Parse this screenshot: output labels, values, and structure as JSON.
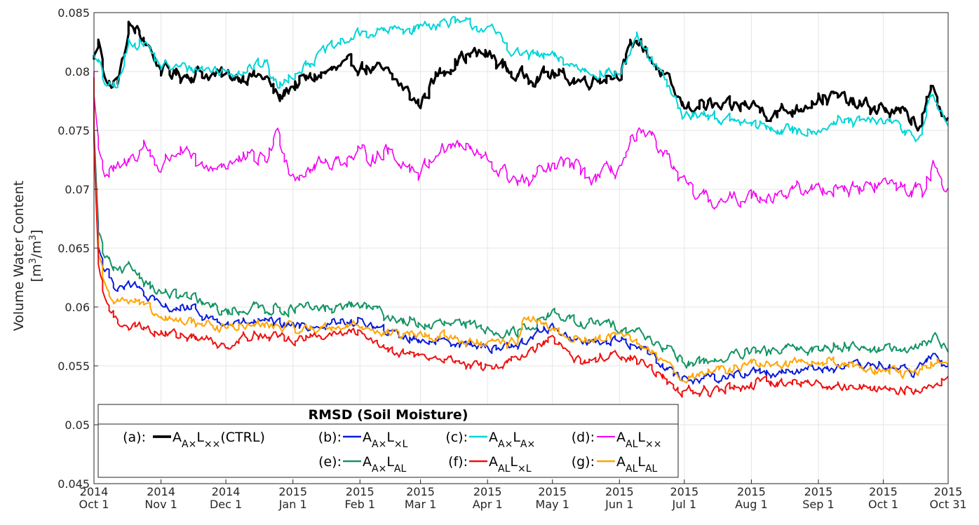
{
  "chart_data": {
    "type": "line",
    "ylabel": "Volume Water Content",
    "ylabel_units": "[m3/m3]",
    "ylim": [
      0.045,
      0.085
    ],
    "yticks": [
      "0.045",
      "0.05",
      "0.055",
      "0.06",
      "0.065",
      "0.07",
      "0.075",
      "0.08",
      "0.085"
    ],
    "xlim": [
      "2014-10-01",
      "2015-10-31"
    ],
    "xticks": [
      {
        "date": "2014-10-01",
        "year": "2014",
        "label": "Oct 1"
      },
      {
        "date": "2014-11-01",
        "year": "2014",
        "label": "Nov 1"
      },
      {
        "date": "2014-12-01",
        "year": "2014",
        "label": "Dec 1"
      },
      {
        "date": "2015-01-01",
        "year": "2015",
        "label": "Jan 1"
      },
      {
        "date": "2015-02-01",
        "year": "2015",
        "label": "Feb 1"
      },
      {
        "date": "2015-03-01",
        "year": "2015",
        "label": "Mar 1"
      },
      {
        "date": "2015-04-01",
        "year": "2015",
        "label": "Apr 1"
      },
      {
        "date": "2015-05-01",
        "year": "2015",
        "label": "May 1"
      },
      {
        "date": "2015-06-01",
        "year": "2015",
        "label": "Jun 1"
      },
      {
        "date": "2015-07-01",
        "year": "2015",
        "label": "Jul 1"
      },
      {
        "date": "2015-08-01",
        "year": "2015",
        "label": "Aug 1"
      },
      {
        "date": "2015-09-01",
        "year": "2015",
        "label": "Sep 1"
      },
      {
        "date": "2015-10-01",
        "year": "2015",
        "label": "Oct 1"
      },
      {
        "date": "2015-10-31",
        "year": "2015",
        "label": "Oct 31"
      }
    ],
    "grid": true,
    "legend": {
      "title": "RMSD (Soil Moisture)",
      "placement": "bottom-left",
      "entries": [
        {
          "tag": "(a):",
          "name": "A_{A×}L_{××}(CTRL)",
          "base1": "A",
          "sub1": "A×",
          "base2": "L",
          "sub2": "××",
          "suffix": "(CTRL)",
          "series": "a"
        },
        {
          "tag": "(b):",
          "name": "A_{A×}L_{×L}",
          "base1": "A",
          "sub1": "A×",
          "base2": "L",
          "sub2": "×L",
          "suffix": "",
          "series": "b"
        },
        {
          "tag": "(c):",
          "name": "A_{A×}L_{A×}",
          "base1": "A",
          "sub1": "A×",
          "base2": "L",
          "sub2": "A×",
          "suffix": "",
          "series": "c"
        },
        {
          "tag": "(d):",
          "name": "A_{AL}L_{××}",
          "base1": "A",
          "sub1": "AL",
          "base2": "L",
          "sub2": "××",
          "suffix": "",
          "series": "d"
        },
        {
          "tag": "(e):",
          "name": "A_{A×}L_{AL}",
          "base1": "A",
          "sub1": "A×",
          "base2": "L",
          "sub2": "AL",
          "suffix": "",
          "series": "e"
        },
        {
          "tag": "(f):",
          "name": "A_{AL}L_{×L}",
          "base1": "A",
          "sub1": "AL",
          "base2": "L",
          "sub2": "×L",
          "suffix": "",
          "series": "f"
        },
        {
          "tag": "(g):",
          "name": "A_{AL}L_{AL}",
          "base1": "A",
          "sub1": "AL",
          "base2": "L",
          "sub2": "AL",
          "suffix": "",
          "series": "g"
        }
      ]
    },
    "series": [
      {
        "id": "a",
        "color": "#000000",
        "width": 3.2,
        "x": [
          "2014-10-01",
          "2014-10-04",
          "2014-10-08",
          "2014-10-13",
          "2014-10-18",
          "2014-10-25",
          "2014-11-01",
          "2014-11-10",
          "2014-11-20",
          "2014-12-01",
          "2014-12-10",
          "2014-12-20",
          "2014-12-26",
          "2015-01-01",
          "2015-01-15",
          "2015-02-01",
          "2015-02-15",
          "2015-03-01",
          "2015-03-10",
          "2015-03-20",
          "2015-04-01",
          "2015-04-15",
          "2015-05-01",
          "2015-05-15",
          "2015-06-01",
          "2015-06-10",
          "2015-06-20",
          "2015-07-01",
          "2015-07-10",
          "2015-07-20",
          "2015-08-01",
          "2015-08-10",
          "2015-08-20",
          "2015-09-01",
          "2015-09-10",
          "2015-09-20",
          "2015-10-01",
          "2015-10-10",
          "2015-10-18",
          "2015-10-24",
          "2015-10-31"
        ],
        "y": [
          0.081,
          0.0825,
          0.0788,
          0.0792,
          0.0838,
          0.0828,
          0.0803,
          0.0797,
          0.0799,
          0.0796,
          0.0797,
          0.0795,
          0.0776,
          0.0788,
          0.0798,
          0.0806,
          0.0797,
          0.0772,
          0.0799,
          0.0812,
          0.0815,
          0.0796,
          0.0798,
          0.0792,
          0.0799,
          0.0828,
          0.0801,
          0.077,
          0.0772,
          0.0768,
          0.0772,
          0.0765,
          0.0767,
          0.0778,
          0.0778,
          0.0771,
          0.0768,
          0.0764,
          0.0755,
          0.0782,
          0.0761
        ]
      },
      {
        "id": "c",
        "color": "#00d5d8",
        "width": 2,
        "x": [
          "2014-10-01",
          "2014-10-04",
          "2014-10-08",
          "2014-10-13",
          "2014-10-18",
          "2014-10-25",
          "2014-11-01",
          "2014-11-10",
          "2014-11-20",
          "2014-12-01",
          "2014-12-10",
          "2014-12-20",
          "2014-12-26",
          "2015-01-01",
          "2015-01-15",
          "2015-02-01",
          "2015-02-15",
          "2015-03-01",
          "2015-03-10",
          "2015-03-20",
          "2015-04-01",
          "2015-04-15",
          "2015-05-01",
          "2015-05-15",
          "2015-06-01",
          "2015-06-10",
          "2015-06-20",
          "2015-07-01",
          "2015-07-10",
          "2015-07-20",
          "2015-08-01",
          "2015-08-10",
          "2015-08-20",
          "2015-09-01",
          "2015-09-10",
          "2015-09-20",
          "2015-10-01",
          "2015-10-10",
          "2015-10-18",
          "2015-10-24",
          "2015-10-31"
        ],
        "y": [
          0.0815,
          0.0805,
          0.0785,
          0.079,
          0.0826,
          0.0825,
          0.0805,
          0.0803,
          0.0803,
          0.08,
          0.0802,
          0.0807,
          0.0785,
          0.0799,
          0.0815,
          0.0832,
          0.0834,
          0.0838,
          0.0842,
          0.084,
          0.0838,
          0.0815,
          0.0812,
          0.0802,
          0.0798,
          0.0826,
          0.08,
          0.0762,
          0.0765,
          0.0759,
          0.0755,
          0.0752,
          0.0749,
          0.0752,
          0.0757,
          0.0756,
          0.0758,
          0.0752,
          0.0744,
          0.0778,
          0.0758
        ]
      },
      {
        "id": "d",
        "color": "#f200f0",
        "width": 1.6,
        "x": [
          "2014-10-01",
          "2014-10-03",
          "2014-10-07",
          "2014-10-15",
          "2014-10-25",
          "2014-11-01",
          "2014-11-10",
          "2014-11-20",
          "2014-12-01",
          "2014-12-10",
          "2014-12-20",
          "2014-12-26",
          "2015-01-01",
          "2015-01-15",
          "2015-02-01",
          "2015-02-15",
          "2015-03-01",
          "2015-03-10",
          "2015-03-20",
          "2015-04-01",
          "2015-04-10",
          "2015-04-20",
          "2015-05-01",
          "2015-05-10",
          "2015-05-20",
          "2015-06-01",
          "2015-06-10",
          "2015-06-20",
          "2015-07-01",
          "2015-07-10",
          "2015-07-20",
          "2015-08-01",
          "2015-08-10",
          "2015-08-20",
          "2015-09-01",
          "2015-09-10",
          "2015-09-20",
          "2015-10-01",
          "2015-10-10",
          "2015-10-20",
          "2015-10-25",
          "2015-10-31"
        ],
        "y": [
          0.08,
          0.0745,
          0.0712,
          0.0718,
          0.0738,
          0.0718,
          0.0735,
          0.0716,
          0.0722,
          0.0724,
          0.0726,
          0.0748,
          0.0712,
          0.0722,
          0.0728,
          0.0732,
          0.0714,
          0.0735,
          0.0738,
          0.0724,
          0.0712,
          0.0705,
          0.0718,
          0.0722,
          0.0708,
          0.0718,
          0.0745,
          0.0738,
          0.0702,
          0.0692,
          0.0688,
          0.0695,
          0.0696,
          0.0698,
          0.07,
          0.0702,
          0.07,
          0.0705,
          0.0702,
          0.0698,
          0.0722,
          0.0703
        ]
      },
      {
        "id": "e",
        "color": "#149464",
        "width": 2,
        "x": [
          "2014-10-01",
          "2014-10-03",
          "2014-10-06",
          "2014-10-12",
          "2014-10-20",
          "2014-11-01",
          "2014-11-15",
          "2014-12-01",
          "2014-12-15",
          "2015-01-01",
          "2015-01-15",
          "2015-02-01",
          "2015-02-15",
          "2015-03-01",
          "2015-03-15",
          "2015-04-01",
          "2015-04-15",
          "2015-05-01",
          "2015-05-15",
          "2015-06-01",
          "2015-06-15",
          "2015-07-01",
          "2015-07-15",
          "2015-08-01",
          "2015-08-15",
          "2015-09-01",
          "2015-09-15",
          "2015-10-01",
          "2015-10-15",
          "2015-10-24",
          "2015-10-31"
        ],
        "y": [
          0.0795,
          0.0672,
          0.0645,
          0.0628,
          0.0632,
          0.0612,
          0.0607,
          0.0595,
          0.06,
          0.0598,
          0.0598,
          0.0602,
          0.0592,
          0.0585,
          0.0585,
          0.0582,
          0.0578,
          0.0595,
          0.0585,
          0.0585,
          0.0575,
          0.0552,
          0.0555,
          0.056,
          0.0563,
          0.0565,
          0.0568,
          0.0565,
          0.0562,
          0.0576,
          0.0565
        ]
      },
      {
        "id": "b",
        "color": "#0a1adc",
        "width": 2,
        "x": [
          "2014-10-01",
          "2014-10-03",
          "2014-10-06",
          "2014-10-12",
          "2014-10-20",
          "2014-11-01",
          "2014-11-15",
          "2014-12-01",
          "2014-12-15",
          "2015-01-01",
          "2015-01-15",
          "2015-02-01",
          "2015-02-15",
          "2015-03-01",
          "2015-03-15",
          "2015-04-01",
          "2015-04-15",
          "2015-05-01",
          "2015-05-15",
          "2015-06-01",
          "2015-06-15",
          "2015-07-01",
          "2015-07-15",
          "2015-08-01",
          "2015-08-15",
          "2015-09-01",
          "2015-09-15",
          "2015-10-01",
          "2015-10-15",
          "2015-10-24",
          "2015-10-31"
        ],
        "y": [
          0.0795,
          0.0662,
          0.0633,
          0.0618,
          0.0618,
          0.06,
          0.0598,
          0.0585,
          0.0587,
          0.0584,
          0.0584,
          0.0588,
          0.0578,
          0.0572,
          0.0572,
          0.0565,
          0.0568,
          0.0583,
          0.057,
          0.0572,
          0.0562,
          0.0538,
          0.054,
          0.0545,
          0.0545,
          0.0548,
          0.0548,
          0.055,
          0.0545,
          0.0558,
          0.055
        ]
      },
      {
        "id": "g",
        "color": "#ffa500",
        "width": 2,
        "x": [
          "2014-10-01",
          "2014-10-03",
          "2014-10-06",
          "2014-10-12",
          "2014-10-20",
          "2014-11-01",
          "2014-11-15",
          "2014-12-01",
          "2014-12-15",
          "2015-01-01",
          "2015-01-15",
          "2015-02-01",
          "2015-02-15",
          "2015-03-01",
          "2015-03-15",
          "2015-04-01",
          "2015-04-15",
          "2015-04-18",
          "2015-05-01",
          "2015-05-15",
          "2015-06-01",
          "2015-06-15",
          "2015-07-01",
          "2015-07-15",
          "2015-08-01",
          "2015-08-15",
          "2015-09-01",
          "2015-09-15",
          "2015-10-01",
          "2015-10-15",
          "2015-10-24",
          "2015-10-31"
        ],
        "y": [
          0.0795,
          0.0655,
          0.0622,
          0.0606,
          0.0606,
          0.059,
          0.0588,
          0.0582,
          0.0585,
          0.0582,
          0.0582,
          0.0585,
          0.0577,
          0.0575,
          0.0575,
          0.0567,
          0.057,
          0.0592,
          0.058,
          0.0572,
          0.0575,
          0.0565,
          0.054,
          0.0545,
          0.0552,
          0.0552,
          0.0555,
          0.0552,
          0.0545,
          0.0542,
          0.0552,
          0.0555
        ]
      },
      {
        "id": "f",
        "color": "#ee1111",
        "width": 2,
        "x": [
          "2014-10-01",
          "2014-10-03",
          "2014-10-06",
          "2014-10-12",
          "2014-10-20",
          "2014-11-01",
          "2014-11-15",
          "2014-12-01",
          "2014-12-15",
          "2015-01-01",
          "2015-01-15",
          "2015-02-01",
          "2015-02-15",
          "2015-03-01",
          "2015-03-15",
          "2015-04-01",
          "2015-04-15",
          "2015-05-01",
          "2015-05-15",
          "2015-06-01",
          "2015-06-15",
          "2015-07-01",
          "2015-07-15",
          "2015-08-01",
          "2015-08-15",
          "2015-09-01",
          "2015-09-15",
          "2015-10-01",
          "2015-10-15",
          "2015-10-24",
          "2015-10-31"
        ],
        "y": [
          0.0795,
          0.0645,
          0.061,
          0.0588,
          0.0585,
          0.0578,
          0.0575,
          0.0568,
          0.0578,
          0.0572,
          0.0575,
          0.0578,
          0.0565,
          0.0558,
          0.0555,
          0.0548,
          0.0555,
          0.0572,
          0.0552,
          0.0562,
          0.055,
          0.0528,
          0.0528,
          0.0535,
          0.0535,
          0.0535,
          0.0532,
          0.0532,
          0.0528,
          0.0535,
          0.0542
        ]
      }
    ]
  }
}
